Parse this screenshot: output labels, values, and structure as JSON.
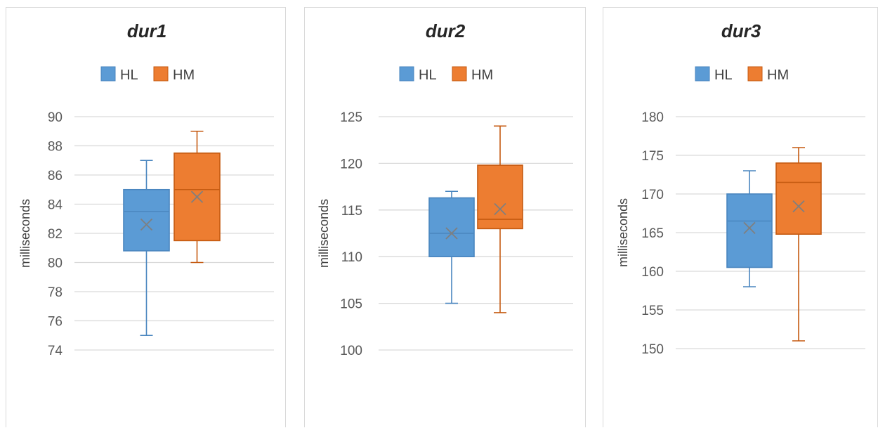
{
  "colors": {
    "HL": "#5b9bd5",
    "HL_border": "#4a86bf",
    "HM": "#ed7d31",
    "HM_border": "#c55a11",
    "grid": "#d9d9d9",
    "mean_marker": "#7f7f7f"
  },
  "chart_data": [
    {
      "type": "box",
      "title": "dur1",
      "ylabel": "milliseconds",
      "ylim": [
        74,
        90
      ],
      "yticks": [
        74,
        76,
        78,
        80,
        82,
        84,
        86,
        88,
        90
      ],
      "legend": "top-center",
      "grid": true,
      "series": [
        {
          "name": "HL",
          "min": 75,
          "q1": 80.8,
          "median": 83.5,
          "q3": 85,
          "max": 87,
          "mean": 82.6
        },
        {
          "name": "HM",
          "min": 80,
          "q1": 81.5,
          "median": 85,
          "q3": 87.5,
          "max": 89,
          "mean": 84.5
        }
      ]
    },
    {
      "type": "box",
      "title": "dur2",
      "ylabel": "milliseconds",
      "ylim": [
        100,
        125
      ],
      "yticks": [
        100,
        105,
        110,
        115,
        120,
        125
      ],
      "legend": "top-center",
      "grid": true,
      "series": [
        {
          "name": "HL",
          "min": 105,
          "q1": 110,
          "median": 112.5,
          "q3": 116.3,
          "max": 117,
          "mean": 112.5
        },
        {
          "name": "HM",
          "min": 104,
          "q1": 113,
          "median": 114,
          "q3": 119.8,
          "max": 124,
          "mean": 115.1
        }
      ]
    },
    {
      "type": "box",
      "title": "dur3",
      "ylabel": "milliseconds",
      "ylim": [
        150,
        180
      ],
      "yticks": [
        150,
        155,
        160,
        165,
        170,
        175,
        180
      ],
      "legend": "top-center",
      "grid": true,
      "series": [
        {
          "name": "HL",
          "min": 158,
          "q1": 160.5,
          "median": 166.5,
          "q3": 170,
          "max": 173,
          "mean": 165.6
        },
        {
          "name": "HM",
          "min": 151,
          "q1": 164.8,
          "median": 171.5,
          "q3": 174,
          "max": 176,
          "mean": 168.4
        }
      ]
    }
  ]
}
